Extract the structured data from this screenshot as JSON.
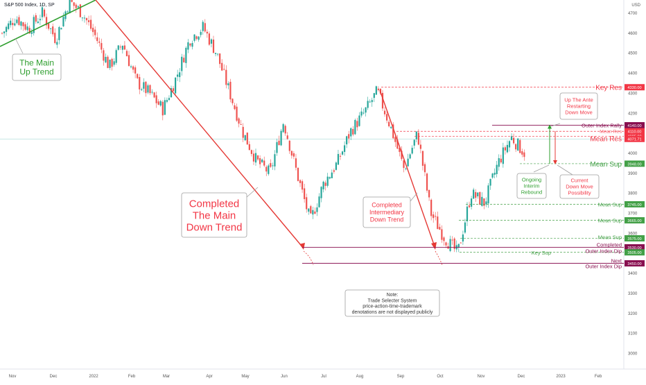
{
  "header": {
    "title": "S&P 500 Index, 1D, SP",
    "currency": "USD"
  },
  "chart_data": {
    "type": "candlestick",
    "title": "S&P 500 Index, 1D, SP",
    "ylabel": "USD",
    "ylim": [
      2970,
      4760
    ],
    "x_ticks": [
      "Nov",
      "Dec",
      "2022",
      "Feb",
      "Mar",
      "Apr",
      "May",
      "Jun",
      "Jul",
      "Aug",
      "Sep",
      "Oct",
      "Nov",
      "Dec",
      "2023",
      "Feb"
    ],
    "y_ticks": [
      3000,
      3100,
      3200,
      3300,
      3400,
      3500,
      3600,
      3700,
      3800,
      3900,
      4000,
      4100,
      4200,
      4300,
      4400,
      4500,
      4600,
      4700
    ],
    "price_path": [
      [
        "Nov",
        4600
      ],
      [
        "Nov",
        4680
      ],
      [
        "Dec",
        4620
      ],
      [
        "Dec",
        4700
      ],
      [
        "Dec",
        4570
      ],
      [
        "2022",
        4760
      ],
      [
        "2022",
        4700
      ],
      [
        "2022",
        4580
      ],
      [
        "2022",
        4430
      ],
      [
        "Feb",
        4550
      ],
      [
        "Feb",
        4360
      ],
      [
        "Feb",
        4300
      ],
      [
        "Mar",
        4220
      ],
      [
        "Mar",
        4380
      ],
      [
        "Mar",
        4570
      ],
      [
        "Apr",
        4630
      ],
      [
        "Apr",
        4500
      ],
      [
        "Apr",
        4300
      ],
      [
        "May",
        4100
      ],
      [
        "May",
        3960
      ],
      [
        "May",
        3900
      ],
      [
        "Jun",
        4160
      ],
      [
        "Jun",
        3900
      ],
      [
        "Jun",
        3660
      ],
      [
        "Jul",
        3850
      ],
      [
        "Jul",
        3950
      ],
      [
        "Jul",
        4110
      ],
      [
        "Aug",
        4200
      ],
      [
        "Aug",
        4310
      ],
      [
        "Aug",
        4130
      ],
      [
        "Sep",
        3920
      ],
      [
        "Sep",
        4100
      ],
      [
        "Sep",
        3700
      ],
      [
        "Oct",
        3580
      ],
      [
        "Oct",
        3500
      ],
      [
        "Oct",
        3800
      ],
      [
        "Nov",
        3750
      ],
      [
        "Nov",
        3950
      ],
      [
        "Dec",
        4080
      ],
      [
        "Dec",
        4000
      ]
    ],
    "levels": [
      {
        "label": "Key Res",
        "price_tag": "4330.00",
        "value": 4330,
        "color": "#f23645",
        "style": "dashed"
      },
      {
        "label": "Outer Index Rally",
        "price_tag": "4140.00",
        "value": 4140,
        "color": "#880e4f",
        "style": "solid"
      },
      {
        "label": "Mean Res",
        "price_tag": "4110.00",
        "value": 4110,
        "color": "#f23645",
        "style": "dashed"
      },
      {
        "label": "",
        "price_tag": "4085.00",
        "value": 4085,
        "color": "#f23645",
        "style": "dashed"
      },
      {
        "label": "Mean Res",
        "price_tag": "4071.71",
        "value": 4071.71,
        "color": "#f23645",
        "style": "none"
      },
      {
        "label": "Mean Sup",
        "price_tag": "3948.00",
        "value": 3948,
        "color": "#43a047",
        "style": "dashed"
      },
      {
        "label": "Mean Sup",
        "price_tag": "3745.00",
        "value": 3745,
        "color": "#43a047",
        "style": "dashed"
      },
      {
        "label": "Mean Sup",
        "price_tag": "3665.00",
        "value": 3665,
        "color": "#43a047",
        "style": "dashed"
      },
      {
        "label": "Mean Sup",
        "price_tag": "3575.00",
        "value": 3575,
        "color": "#43a047",
        "style": "dashed"
      },
      {
        "label": "Completed Outer Index Dip",
        "price_tag": "3530.00",
        "value": 3530,
        "color": "#880e4f",
        "style": "solid"
      },
      {
        "label": "Key Sup",
        "price_tag": "3505.00",
        "value": 3505,
        "color": "#43a047",
        "style": "dashed"
      },
      {
        "label": "Next Outer Index Dip",
        "price_tag": "3450.00",
        "value": 3450,
        "color": "#880e4f",
        "style": "solid"
      }
    ],
    "annotations": [
      {
        "text": "The Main Up Trend",
        "color": "#2e9e2e"
      },
      {
        "text": "Completed The Main Down Trend",
        "color": "#f23645"
      },
      {
        "text": "Completed Intermediary Down Trend",
        "color": "#f23645"
      },
      {
        "text": "Up The Ante Restarting Down Move",
        "color": "#f23645"
      },
      {
        "text": "Ongoing Interim Rebound",
        "color": "#2e9e2e"
      },
      {
        "text": "Current Down Move Possibility",
        "color": "#f23645"
      }
    ],
    "note": "Note: Trade Selecter System price-action-time-trademark denotations are not displayed publicly",
    "colors": {
      "up": "#26a69a",
      "down": "#ef5350",
      "support": "#43a047",
      "resistance": "#f23645",
      "outer": "#880e4f"
    }
  },
  "texts": {
    "main_up_trend": [
      "The Main",
      "Up Trend"
    ],
    "main_down_trend": [
      "Completed",
      "The Main",
      "Down Trend"
    ],
    "intermediary": [
      "Completed",
      "Intermediary",
      "Down Trend"
    ],
    "up_ante": [
      "Up The Ante",
      "Restarting",
      "Down Move"
    ],
    "interim": [
      "Ongoing",
      "Interim",
      "Rebound"
    ],
    "down_possibility": [
      "Current",
      "Down Move",
      "Possibility"
    ],
    "note": [
      "Note:",
      "Trade Selecter System",
      "price-action-time-trademark",
      "denotations are not displayed publicly"
    ],
    "key_res": "Key Res",
    "outer_rally": "Outer Index Rally",
    "mean_res": "Mean Res",
    "mean_sup": "Mean Sup",
    "completed": "Completed",
    "outer_dip": "Outer Index Dip",
    "key_sup": "Key Sup",
    "next": "Next"
  }
}
